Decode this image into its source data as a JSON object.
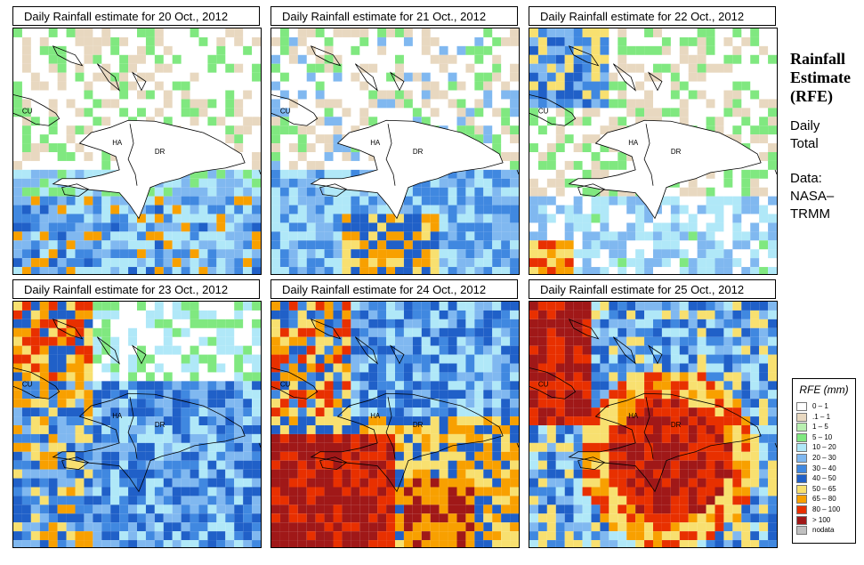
{
  "panels": [
    {
      "title": "Daily Rainfall estimate for  20 Oct., 2012",
      "day": 20
    },
    {
      "title": "Daily Rainfall estimate for  21 Oct., 2012",
      "day": 21
    },
    {
      "title": "Daily Rainfall estimate for  22 Oct., 2012",
      "day": 22
    },
    {
      "title": "Daily Rainfall estimate for  23 Oct., 2012",
      "day": 23
    },
    {
      "title": "Daily Rainfall estimate for  24 Oct., 2012",
      "day": 24
    },
    {
      "title": "Daily Rainfall estimate for  25 Oct., 2012",
      "day": 25
    }
  ],
  "map_labels": {
    "cuba": "CU",
    "haiti": "HA",
    "dominican_republic": "DR"
  },
  "side": {
    "title_line1": "Rainfall",
    "title_line2": "Estimate",
    "title_line3": "(RFE)",
    "period_line1": "Daily",
    "period_line2": "Total",
    "source_line1": "Data:",
    "source_line2": "NASA–",
    "source_line3": "TRMM"
  },
  "legend": {
    "title": "RFE (mm)",
    "items": [
      {
        "label": "0 – 1",
        "color": "#ffffff"
      },
      {
        "label": ".1 – 1",
        "color": "#e8d8c0"
      },
      {
        "label": "1 – 5",
        "color": "#b8f0b0"
      },
      {
        "label": "5 – 10",
        "color": "#80e880"
      },
      {
        "label": "10 – 20",
        "color": "#b0e8f8"
      },
      {
        "label": "20 – 30",
        "color": "#80b8f0"
      },
      {
        "label": "30 – 40",
        "color": "#4088e0"
      },
      {
        "label": "40 – 50",
        "color": "#2060c8"
      },
      {
        "label": "50 – 65",
        "color": "#f8e070"
      },
      {
        "label": "65 – 80",
        "color": "#f8a000"
      },
      {
        "label": "80 – 100",
        "color": "#e83000"
      },
      {
        "label": "> 100",
        "color": "#a01818"
      },
      {
        "label": "nodata",
        "color": "#c0c0c0"
      }
    ]
  },
  "rainfall_pattern": {
    "20": "dry north, 20-50 mm south of Hispaniola, scattered 50-80 mm",
    "21": "dry north, 20-65 mm south, heavier near south center",
    "22": "mostly dry, light rain southwest",
    "23": "widespread 10-50 mm, 50-80 mm west",
    "24": "heavy >100 mm south and southwest",
    "25": ">100 mm over Haiti and Dominican Republic"
  }
}
